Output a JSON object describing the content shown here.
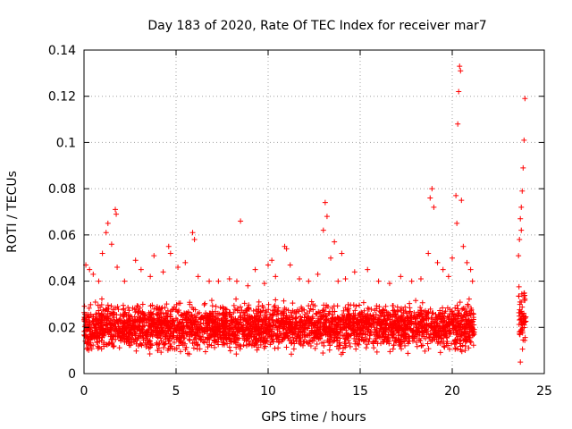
{
  "chart_data": {
    "type": "scatter",
    "title": "Day 183 of 2020, Rate Of TEC Index for receiver mar7",
    "xlabel": "GPS time / hours",
    "ylabel": "ROTI / TECUs",
    "xlim": [
      0,
      25
    ],
    "ylim": [
      0,
      0.14
    ],
    "x_ticks": [
      0,
      5,
      10,
      15,
      20,
      25
    ],
    "x_tick_labels": [
      "0",
      "5",
      "10",
      "15",
      "20",
      "25"
    ],
    "y_ticks": [
      0,
      0.02,
      0.04,
      0.06,
      0.08,
      0.1,
      0.12,
      0.14
    ],
    "y_tick_labels": [
      "0",
      "0.02",
      "0.04",
      "0.06",
      "0.08",
      "0.1",
      "0.12",
      "0.14"
    ],
    "grid": true,
    "marker": "+",
    "color": "#ff0000",
    "series": [
      {
        "name": "ROTI",
        "segments": [
          {
            "x_start": 0.0,
            "x_end": 21.2,
            "typical_min": 0.008,
            "typical_max": 0.032
          },
          {
            "x_start": 23.6,
            "x_end": 24.0,
            "typical_min": 0.008,
            "typical_max": 0.04
          }
        ],
        "outliers": [
          [
            0.1,
            0.047
          ],
          [
            0.3,
            0.045
          ],
          [
            0.5,
            0.043
          ],
          [
            0.8,
            0.04
          ],
          [
            1.0,
            0.052
          ],
          [
            1.2,
            0.061
          ],
          [
            1.3,
            0.065
          ],
          [
            1.5,
            0.056
          ],
          [
            1.7,
            0.071
          ],
          [
            1.75,
            0.069
          ],
          [
            1.8,
            0.046
          ],
          [
            2.2,
            0.04
          ],
          [
            2.8,
            0.049
          ],
          [
            3.1,
            0.045
          ],
          [
            3.6,
            0.042
          ],
          [
            3.8,
            0.051
          ],
          [
            4.3,
            0.044
          ],
          [
            4.6,
            0.055
          ],
          [
            4.7,
            0.052
          ],
          [
            5.1,
            0.046
          ],
          [
            5.5,
            0.048
          ],
          [
            5.9,
            0.061
          ],
          [
            6.0,
            0.058
          ],
          [
            6.2,
            0.042
          ],
          [
            6.8,
            0.04
          ],
          [
            7.3,
            0.04
          ],
          [
            7.9,
            0.041
          ],
          [
            8.3,
            0.04
          ],
          [
            8.5,
            0.066
          ],
          [
            8.9,
            0.038
          ],
          [
            9.3,
            0.045
          ],
          [
            9.8,
            0.039
          ],
          [
            10.0,
            0.047
          ],
          [
            10.2,
            0.049
          ],
          [
            10.4,
            0.042
          ],
          [
            10.9,
            0.055
          ],
          [
            11.0,
            0.054
          ],
          [
            11.2,
            0.047
          ],
          [
            11.7,
            0.041
          ],
          [
            12.2,
            0.04
          ],
          [
            12.7,
            0.043
          ],
          [
            13.0,
            0.062
          ],
          [
            13.1,
            0.074
          ],
          [
            13.2,
            0.068
          ],
          [
            13.4,
            0.05
          ],
          [
            13.6,
            0.057
          ],
          [
            13.8,
            0.04
          ],
          [
            14.0,
            0.052
          ],
          [
            14.2,
            0.041
          ],
          [
            14.7,
            0.044
          ],
          [
            15.4,
            0.045
          ],
          [
            16.0,
            0.04
          ],
          [
            16.6,
            0.039
          ],
          [
            17.2,
            0.042
          ],
          [
            17.8,
            0.04
          ],
          [
            18.3,
            0.041
          ],
          [
            18.7,
            0.052
          ],
          [
            18.8,
            0.076
          ],
          [
            18.9,
            0.08
          ],
          [
            19.0,
            0.072
          ],
          [
            19.2,
            0.048
          ],
          [
            19.5,
            0.045
          ],
          [
            19.8,
            0.042
          ],
          [
            20.0,
            0.05
          ],
          [
            20.2,
            0.077
          ],
          [
            20.25,
            0.065
          ],
          [
            20.3,
            0.108
          ],
          [
            20.35,
            0.122
          ],
          [
            20.4,
            0.133
          ],
          [
            20.45,
            0.131
          ],
          [
            20.5,
            0.075
          ],
          [
            20.6,
            0.055
          ],
          [
            20.8,
            0.048
          ],
          [
            21.0,
            0.045
          ],
          [
            21.1,
            0.04
          ],
          [
            23.6,
            0.051
          ],
          [
            23.65,
            0.058
          ],
          [
            23.7,
            0.067
          ],
          [
            23.75,
            0.072
          ],
          [
            23.8,
            0.079
          ],
          [
            23.85,
            0.089
          ],
          [
            23.9,
            0.101
          ],
          [
            23.95,
            0.119
          ],
          [
            23.7,
            0.005
          ],
          [
            23.75,
            0.062
          ]
        ]
      }
    ]
  }
}
